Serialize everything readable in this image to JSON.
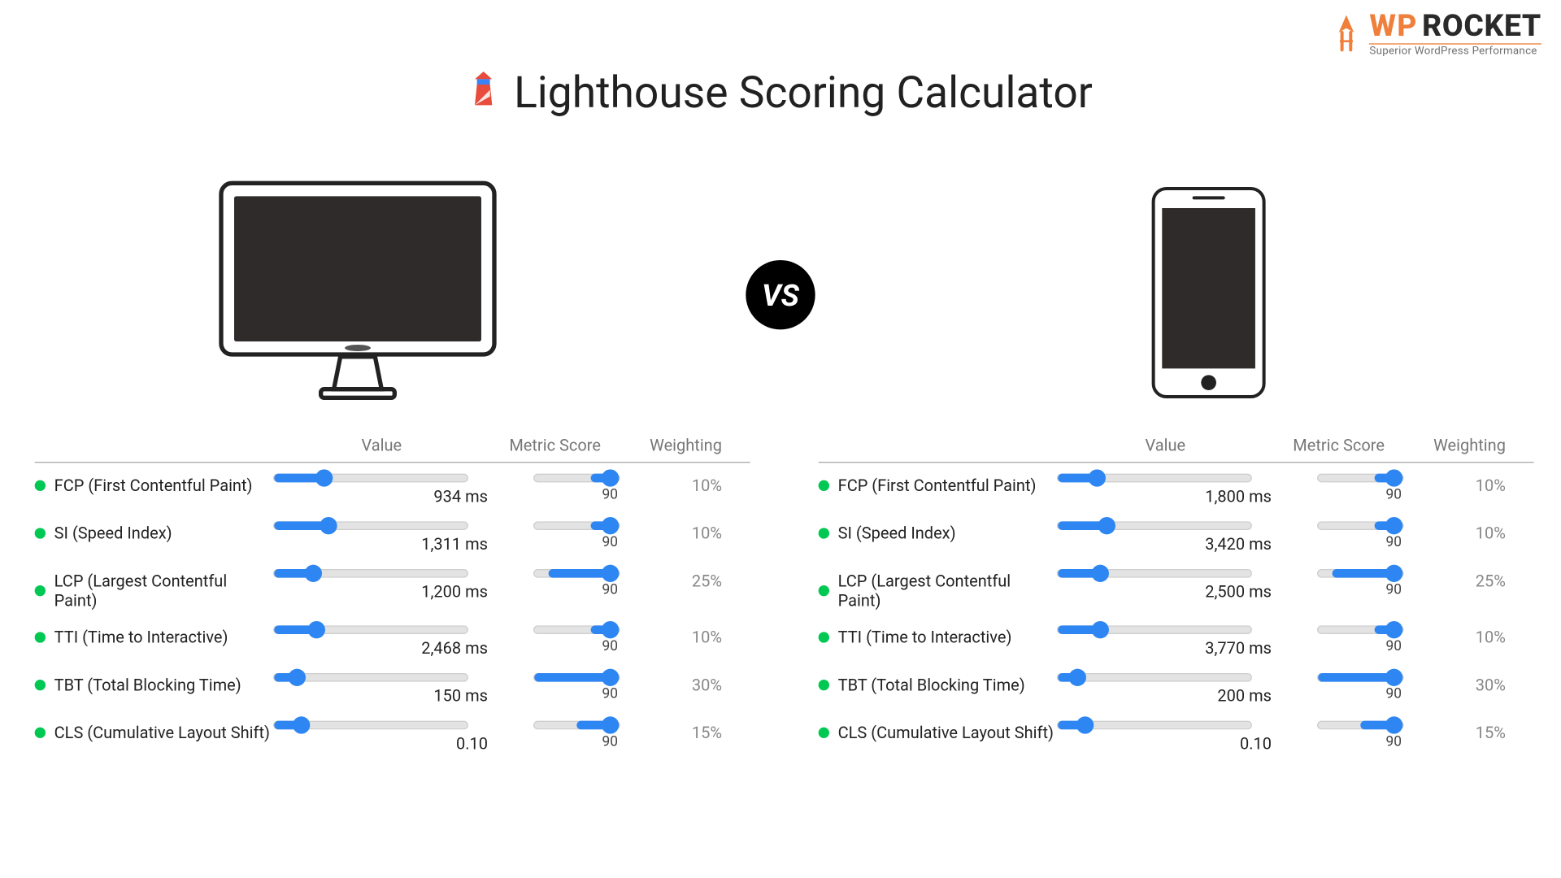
{
  "colors": {
    "background": "#ffffff",
    "text": "#212121",
    "header_text": "#777777",
    "weight_text": "#888888",
    "divider": "#aaaaaa",
    "slider_track": "#e3e3e3",
    "slider_border": "#cfcfcf",
    "slider_fill": "#2e86f3",
    "slider_thumb": "#2e86f3",
    "dot_green": "#00c853",
    "vs_bg": "#000000",
    "vs_text": "#ffffff",
    "device_outline": "#222222",
    "device_screen": "#2e2b2a",
    "logo_wp": "#f07f3b",
    "logo_rocket": "#2a2a2a",
    "logo_tag": "#707070",
    "lh_red": "#e74c3c",
    "lh_blue": "#3b82f6"
  },
  "title": "Lighthouse Scoring Calculator",
  "vs_label": "VS",
  "logo": {
    "wp": "WP",
    "rocket": "ROCKET",
    "tag": "Superior WordPress Performance"
  },
  "headers": {
    "value": "Value",
    "score": "Metric Score",
    "weight": "Weighting"
  },
  "score_slider": {
    "min": 0,
    "max": 100
  },
  "desktop": {
    "rows": [
      {
        "label": "FCP (First Contentful Paint)",
        "value_text": "934 ms",
        "value_pct": 26,
        "score": 90,
        "score_pct": 90,
        "weight": "10%",
        "weight_fill_pct": 33
      },
      {
        "label": "SI (Speed Index)",
        "value_text": "1,311 ms",
        "value_pct": 28,
        "score": 90,
        "score_pct": 90,
        "weight": "10%",
        "weight_fill_pct": 33
      },
      {
        "label": "LCP (Largest Contentful Paint)",
        "value_text": "1,200 ms",
        "value_pct": 20,
        "score": 90,
        "score_pct": 90,
        "weight": "25%",
        "weight_fill_pct": 83
      },
      {
        "label": "TTI (Time to Interactive)",
        "value_text": "2,468 ms",
        "value_pct": 22,
        "score": 90,
        "score_pct": 90,
        "weight": "10%",
        "weight_fill_pct": 33
      },
      {
        "label": "TBT (Total Blocking Time)",
        "value_text": "150 ms",
        "value_pct": 12,
        "score": 90,
        "score_pct": 90,
        "weight": "30%",
        "weight_fill_pct": 100
      },
      {
        "label": "CLS (Cumulative Layout Shift)",
        "value_text": "0.10",
        "value_pct": 14,
        "score": 90,
        "score_pct": 90,
        "weight": "15%",
        "weight_fill_pct": 50
      }
    ]
  },
  "mobile": {
    "rows": [
      {
        "label": "FCP (First Contentful Paint)",
        "value_text": "1,800 ms",
        "value_pct": 20,
        "score": 90,
        "score_pct": 90,
        "weight": "10%",
        "weight_fill_pct": 33
      },
      {
        "label": "SI (Speed Index)",
        "value_text": "3,420 ms",
        "value_pct": 25,
        "score": 90,
        "score_pct": 90,
        "weight": "10%",
        "weight_fill_pct": 33
      },
      {
        "label": "LCP (Largest Contentful Paint)",
        "value_text": "2,500 ms",
        "value_pct": 22,
        "score": 90,
        "score_pct": 90,
        "weight": "25%",
        "weight_fill_pct": 83
      },
      {
        "label": "TTI (Time to Interactive)",
        "value_text": "3,770 ms",
        "value_pct": 22,
        "score": 90,
        "score_pct": 90,
        "weight": "10%",
        "weight_fill_pct": 33
      },
      {
        "label": "TBT (Total Blocking Time)",
        "value_text": "200 ms",
        "value_pct": 10,
        "score": 90,
        "score_pct": 90,
        "weight": "30%",
        "weight_fill_pct": 100
      },
      {
        "label": "CLS (Cumulative Layout Shift)",
        "value_text": "0.10",
        "value_pct": 14,
        "score": 90,
        "score_pct": 90,
        "weight": "15%",
        "weight_fill_pct": 50
      }
    ]
  }
}
